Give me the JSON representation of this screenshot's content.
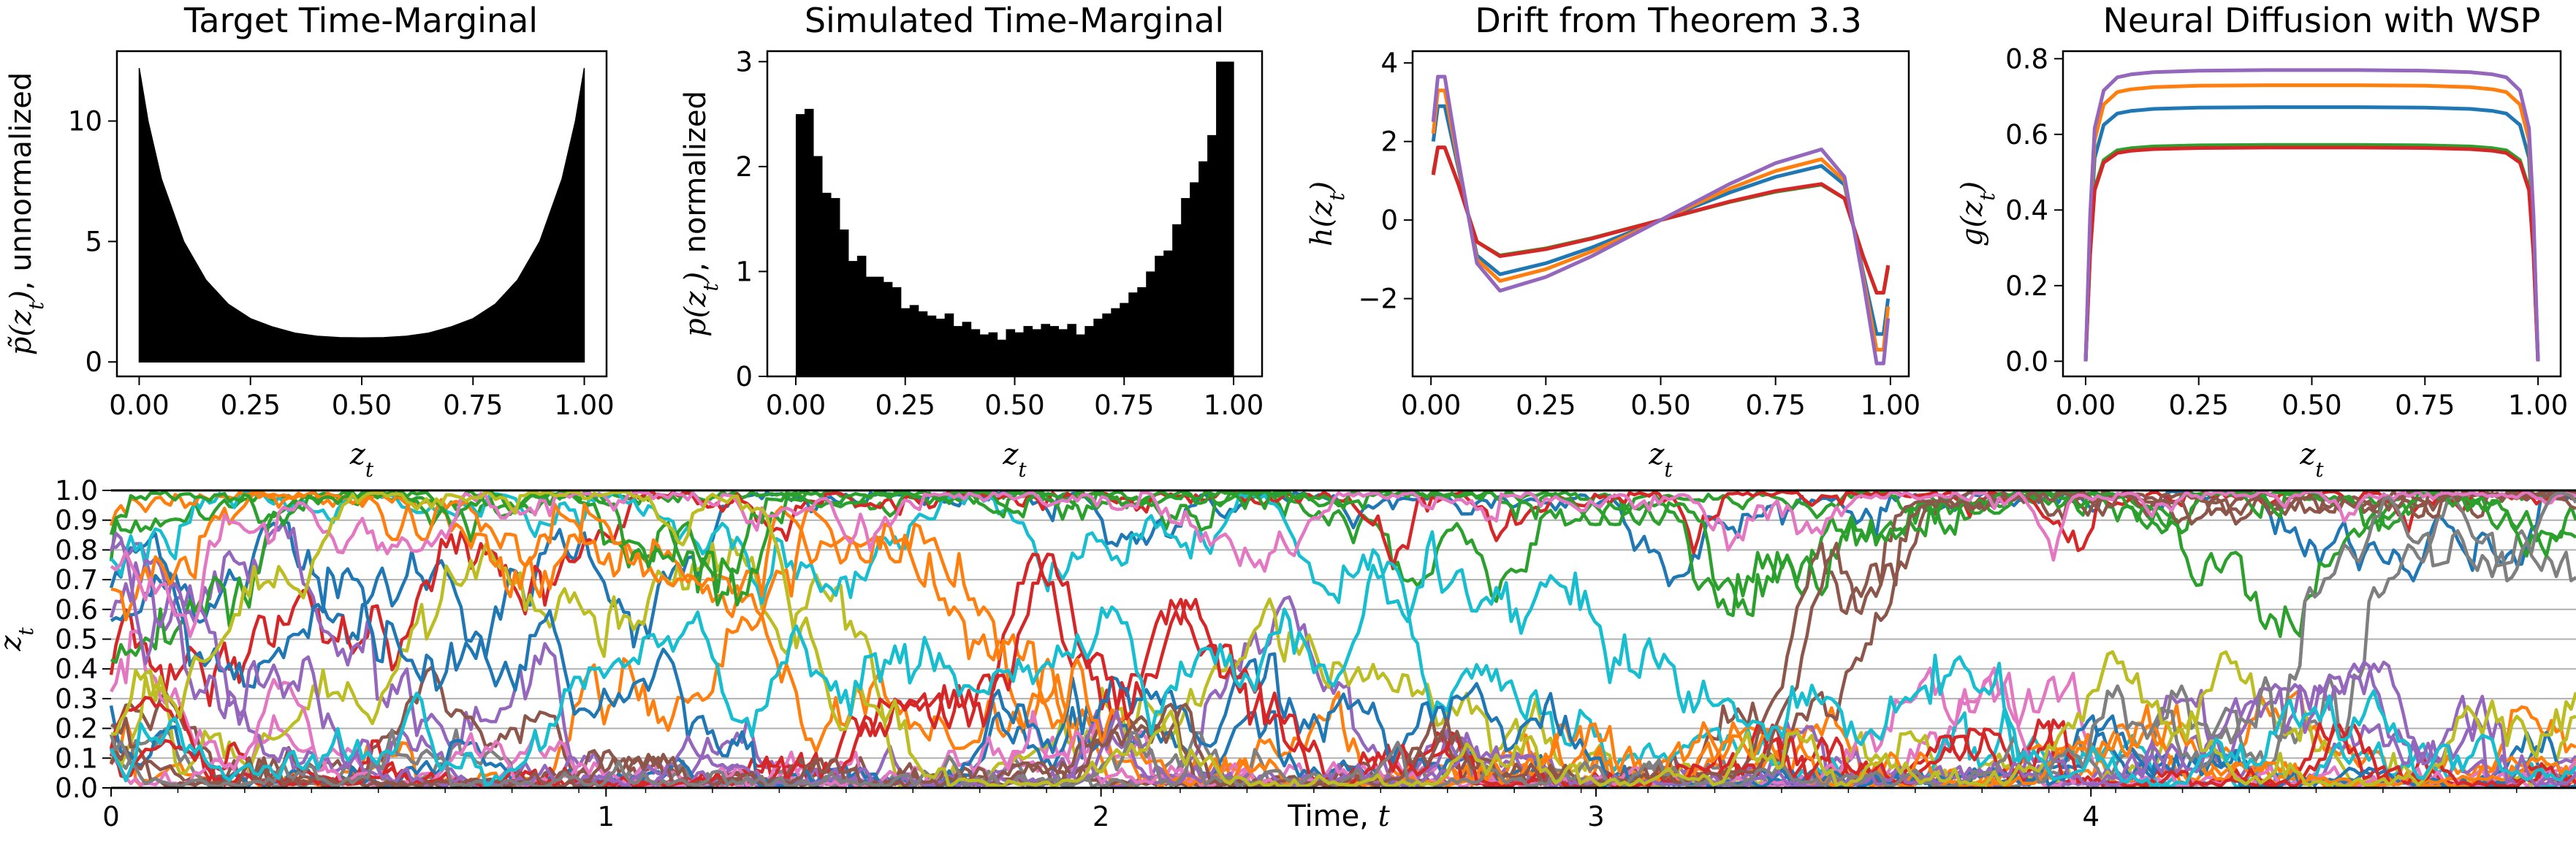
{
  "chart_data": [
    {
      "type": "area",
      "title": "Target Time-Marginal",
      "xlabel": "z_t",
      "ylabel": "p̃(z_t), unnormalized",
      "xlim": [
        -0.05,
        1.05
      ],
      "ylim": [
        -0.6,
        12.9
      ],
      "xticks": [
        "0.00",
        "0.25",
        "0.50",
        "0.75",
        "1.00"
      ],
      "yticks": [
        "0",
        "5",
        "10"
      ],
      "x": [
        0.0,
        0.02,
        0.05,
        0.1,
        0.15,
        0.2,
        0.25,
        0.3,
        0.35,
        0.4,
        0.45,
        0.5,
        0.55,
        0.6,
        0.65,
        0.7,
        0.75,
        0.8,
        0.85,
        0.9,
        0.95,
        0.98,
        1.0
      ],
      "y": [
        12.2,
        10.0,
        7.6,
        5.0,
        3.4,
        2.4,
        1.8,
        1.45,
        1.2,
        1.07,
        1.01,
        1.0,
        1.01,
        1.07,
        1.2,
        1.45,
        1.8,
        2.4,
        3.4,
        5.0,
        7.6,
        10.0,
        12.2
      ]
    },
    {
      "type": "bar",
      "title": "Simulated Time-Marginal",
      "xlabel": "z_t",
      "ylabel": "p(z_t), normalized",
      "xlim": [
        -0.065,
        1.065
      ],
      "ylim": [
        0,
        3.1
      ],
      "xticks": [
        "0.00",
        "0.25",
        "0.50",
        "0.75",
        "1.00"
      ],
      "yticks": [
        "0",
        "1",
        "2",
        "3"
      ],
      "bin_width": 0.02,
      "values": [
        2.5,
        2.55,
        2.1,
        1.75,
        1.7,
        1.4,
        1.1,
        1.15,
        0.95,
        0.95,
        0.9,
        0.85,
        0.65,
        0.68,
        0.62,
        0.58,
        0.55,
        0.6,
        0.48,
        0.52,
        0.45,
        0.4,
        0.42,
        0.35,
        0.45,
        0.42,
        0.48,
        0.45,
        0.5,
        0.48,
        0.45,
        0.5,
        0.4,
        0.48,
        0.55,
        0.6,
        0.65,
        0.7,
        0.8,
        0.85,
        1.0,
        1.15,
        1.2,
        1.45,
        1.7,
        1.85,
        2.05,
        2.3,
        3.0,
        3.0
      ]
    },
    {
      "type": "line",
      "title": "Drift from Theorem 3.3",
      "xlabel": "z_t",
      "ylabel": "h(z_t)",
      "xlim": [
        -0.04,
        1.04
      ],
      "ylim": [
        -3.98,
        4.3
      ],
      "xticks": [
        "0.00",
        "0.25",
        "0.50",
        "0.75",
        "1.00"
      ],
      "yticks": [
        "−2",
        "0",
        "2",
        "4"
      ],
      "x": [
        0.005,
        0.015,
        0.03,
        0.06,
        0.1,
        0.15,
        0.25,
        0.35,
        0.5,
        0.65,
        0.75,
        0.85,
        0.9,
        0.94,
        0.97,
        0.985,
        0.995
      ],
      "series": [
        {
          "name": "s1",
          "color": "#1f77b4",
          "values": [
            2.0,
            2.9,
            2.9,
            1.3,
            -0.9,
            -1.38,
            -1.1,
            -0.7,
            0.0,
            0.7,
            1.1,
            1.38,
            0.9,
            -1.3,
            -2.9,
            -2.9,
            -2.0
          ]
        },
        {
          "name": "s2",
          "color": "#ff7f0e",
          "values": [
            2.2,
            3.3,
            3.3,
            1.4,
            -1.0,
            -1.55,
            -1.25,
            -0.8,
            0.0,
            0.8,
            1.25,
            1.55,
            1.0,
            -1.4,
            -3.3,
            -3.3,
            -2.2
          ]
        },
        {
          "name": "s3",
          "color": "#2ca02c",
          "values": [
            1.2,
            1.85,
            1.85,
            0.9,
            -0.55,
            -0.9,
            -0.72,
            -0.46,
            0.0,
            0.46,
            0.72,
            0.9,
            0.55,
            -0.9,
            -1.85,
            -1.85,
            -1.2
          ]
        },
        {
          "name": "s4",
          "color": "#d62728",
          "values": [
            1.15,
            1.85,
            1.85,
            0.9,
            -0.55,
            -0.92,
            -0.74,
            -0.47,
            0.0,
            0.47,
            0.74,
            0.92,
            0.55,
            -0.9,
            -1.85,
            -1.85,
            -1.15
          ]
        },
        {
          "name": "s5",
          "color": "#9467bd",
          "values": [
            2.5,
            3.65,
            3.65,
            1.5,
            -1.1,
            -1.8,
            -1.45,
            -0.92,
            0.0,
            0.92,
            1.45,
            1.8,
            1.1,
            -1.5,
            -3.65,
            -3.65,
            -2.5
          ]
        }
      ]
    },
    {
      "type": "line",
      "title": "Neural Diffusion with WSP",
      "xlabel": "z_t",
      "ylabel": "g(z_t)",
      "xlim": [
        -0.05,
        1.05
      ],
      "ylim": [
        -0.04,
        0.82
      ],
      "xticks": [
        "0.00",
        "0.25",
        "0.50",
        "0.75",
        "1.00"
      ],
      "yticks": [
        "0.0",
        "0.2",
        "0.4",
        "0.6",
        "0.8"
      ],
      "x": [
        0.0,
        0.01,
        0.02,
        0.04,
        0.07,
        0.1,
        0.15,
        0.25,
        0.4,
        0.5,
        0.6,
        0.75,
        0.85,
        0.9,
        0.93,
        0.96,
        0.98,
        0.99,
        1.0
      ],
      "series": [
        {
          "name": "s1",
          "color": "#1f77b4",
          "shape": [
            0.0,
            0.5,
            0.8,
            0.93,
            0.975,
            0.985,
            0.993,
            0.998,
            1.0,
            1.0,
            1.0,
            0.998,
            0.993,
            0.985,
            0.975,
            0.93,
            0.8,
            0.5,
            0.0
          ],
          "plateau": 0.672
        },
        {
          "name": "s2",
          "color": "#ff7f0e",
          "shape": [
            0.0,
            0.5,
            0.8,
            0.93,
            0.975,
            0.985,
            0.993,
            0.998,
            1.0,
            1.0,
            1.0,
            0.998,
            0.993,
            0.985,
            0.975,
            0.93,
            0.8,
            0.5,
            0.0
          ],
          "plateau": 0.73
        },
        {
          "name": "s3",
          "color": "#2ca02c",
          "shape": [
            0.0,
            0.5,
            0.8,
            0.93,
            0.975,
            0.985,
            0.993,
            0.998,
            1.0,
            1.0,
            1.0,
            0.998,
            0.993,
            0.985,
            0.975,
            0.93,
            0.8,
            0.5,
            0.0
          ],
          "plateau": 0.572
        },
        {
          "name": "s4",
          "color": "#d62728",
          "shape": [
            0.0,
            0.5,
            0.8,
            0.93,
            0.975,
            0.985,
            0.993,
            0.998,
            1.0,
            1.0,
            1.0,
            0.998,
            0.993,
            0.985,
            0.975,
            0.93,
            0.8,
            0.5,
            0.0
          ],
          "plateau": 0.565
        },
        {
          "name": "s5",
          "color": "#9467bd",
          "shape": [
            0.0,
            0.5,
            0.8,
            0.93,
            0.975,
            0.985,
            0.993,
            0.998,
            1.0,
            1.0,
            1.0,
            0.998,
            0.993,
            0.985,
            0.975,
            0.93,
            0.8,
            0.5,
            0.0
          ],
          "plateau": 0.77
        }
      ]
    },
    {
      "type": "line",
      "title": "",
      "xlabel": "Time, t",
      "ylabel": "z_t",
      "xlim": [
        0,
        4.98
      ],
      "ylim": [
        0,
        1.0
      ],
      "xticks": [
        "0",
        "1",
        "2",
        "3",
        "4"
      ],
      "yticks": [
        "0.0",
        "0.1",
        "0.2",
        "0.3",
        "0.4",
        "0.5",
        "0.6",
        "0.7",
        "0.8",
        "0.9",
        "1.0"
      ],
      "grid": "horizontal",
      "n_paths": 30,
      "n_steps": 500,
      "colors": [
        "#1f77b4",
        "#ff7f0e",
        "#2ca02c",
        "#d62728",
        "#9467bd",
        "#8c564b",
        "#e377c2",
        "#7f7f7f",
        "#bcbd22",
        "#17becf"
      ]
    }
  ]
}
